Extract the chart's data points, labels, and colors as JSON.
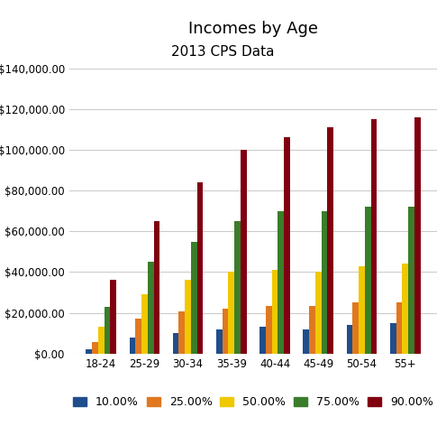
{
  "title": "Incomes by Age",
  "subtitle": "2013 CPS Data",
  "categories": [
    "18-24",
    "25-29",
    "30-34",
    "35-39",
    "40-44",
    "45-49",
    "50-54",
    "55+"
  ],
  "series": [
    {
      "label": "10.00%",
      "color": "#1f4e8c",
      "values": [
        2000,
        8000,
        10000,
        12000,
        13000,
        12000,
        14000,
        15000
      ]
    },
    {
      "label": "25.00%",
      "color": "#e07820",
      "values": [
        5500,
        17000,
        20500,
        22000,
        23500,
        23500,
        25000,
        25000
      ]
    },
    {
      "label": "50.00%",
      "color": "#f0c800",
      "values": [
        13000,
        29000,
        36000,
        40000,
        41000,
        40000,
        43000,
        44000
      ]
    },
    {
      "label": "75.00%",
      "color": "#3a7d2a",
      "values": [
        23000,
        45000,
        55000,
        65000,
        70000,
        70000,
        72000,
        72000
      ]
    },
    {
      "label": "90.00%",
      "color": "#800010",
      "values": [
        36000,
        65000,
        84000,
        100000,
        106000,
        111000,
        115000,
        116000
      ]
    }
  ],
  "ylim": [
    0,
    140000
  ],
  "yticks": [
    0,
    20000,
    40000,
    60000,
    80000,
    100000,
    120000,
    140000
  ],
  "background_color": "#ffffff",
  "plot_background": "#ffffff",
  "grid_color": "#cccccc",
  "title_fontsize": 13,
  "subtitle_fontsize": 11,
  "tick_fontsize": 8.5,
  "legend_fontsize": 9
}
